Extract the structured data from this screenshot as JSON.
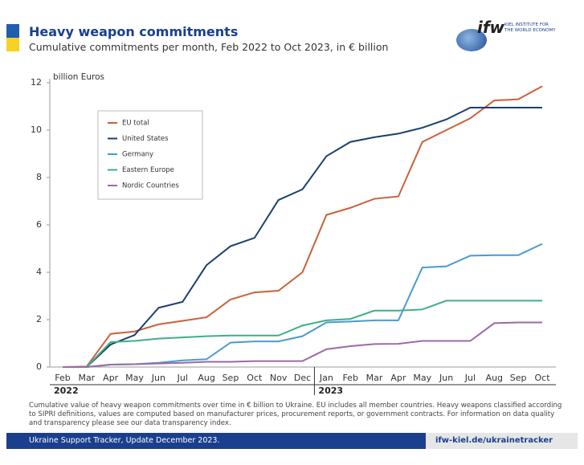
{
  "header": {
    "title": "Heavy weapon commitments",
    "subtitle": "Cumulative commitments per month, Feb 2022 to Oct 2023, in € billion",
    "logo": "ifw",
    "logo_text_1": "KIEL INSTITUTE FOR",
    "logo_text_2": "THE WORLD ECONOMY"
  },
  "chart_data": {
    "type": "line",
    "y_label": "billion Euros",
    "categories": [
      "Feb",
      "Mar",
      "Apr",
      "May",
      "Jun",
      "Jul",
      "Aug",
      "Sep",
      "Oct",
      "Nov",
      "Dec",
      "Jan",
      "Feb",
      "Mar",
      "Apr",
      "May",
      "Jun",
      "Jul",
      "Aug",
      "Sep",
      "Oct"
    ],
    "years": [
      "2022",
      "2023"
    ],
    "ylim": [
      0,
      12
    ],
    "yticks": [
      0,
      2,
      4,
      6,
      8,
      10,
      12
    ],
    "series": [
      {
        "name": "EU total",
        "color": "#c8623a",
        "values": [
          0,
          0.02,
          1.4,
          1.5,
          1.8,
          1.95,
          2.1,
          2.85,
          3.15,
          3.22,
          4.0,
          6.42,
          6.72,
          7.1,
          7.2,
          9.5,
          10.0,
          10.5,
          11.25,
          11.3,
          11.85
        ]
      },
      {
        "name": "United States",
        "color": "#1a3f6f",
        "values": [
          0,
          0,
          0.95,
          1.35,
          2.5,
          2.75,
          4.3,
          5.1,
          5.45,
          7.05,
          7.5,
          8.9,
          9.5,
          9.7,
          9.85,
          10.1,
          10.45,
          10.95,
          10.95,
          10.95,
          10.95
        ]
      },
      {
        "name": "Germany",
        "color": "#4a9ad0",
        "values": [
          0,
          0,
          0.1,
          0.12,
          0.18,
          0.28,
          0.33,
          1.03,
          1.08,
          1.08,
          1.3,
          1.88,
          1.92,
          1.97,
          1.97,
          4.2,
          4.25,
          4.7,
          4.72,
          4.72,
          5.2
        ]
      },
      {
        "name": "Eastern Europe",
        "color": "#3fae86",
        "values": [
          0,
          0,
          1.05,
          1.1,
          1.2,
          1.25,
          1.3,
          1.33,
          1.33,
          1.33,
          1.75,
          1.97,
          2.03,
          2.38,
          2.38,
          2.43,
          2.8,
          2.8,
          2.8,
          2.8,
          2.8
        ]
      },
      {
        "name": "Nordic Countries",
        "color": "#9a6aa6",
        "values": [
          0,
          0,
          0.1,
          0.12,
          0.15,
          0.18,
          0.22,
          0.22,
          0.25,
          0.25,
          0.25,
          0.75,
          0.88,
          0.97,
          0.98,
          1.1,
          1.1,
          1.1,
          1.85,
          1.88,
          1.88
        ]
      }
    ]
  },
  "footnote": "Cumulative value of heavy weapon commitments over time in € billion to Ukraine. EU includes all member countries. Heavy weapons classified according to SIPRI definitions, values are computed based on manufacturer prices, procurement reports, or government contracts. For information on data quality and transparency please see our data transparency index.",
  "footer": {
    "left": "Ukraine Support Tracker, Update December 2023.",
    "right": "ifw-kiel.de/ukrainetracker"
  }
}
